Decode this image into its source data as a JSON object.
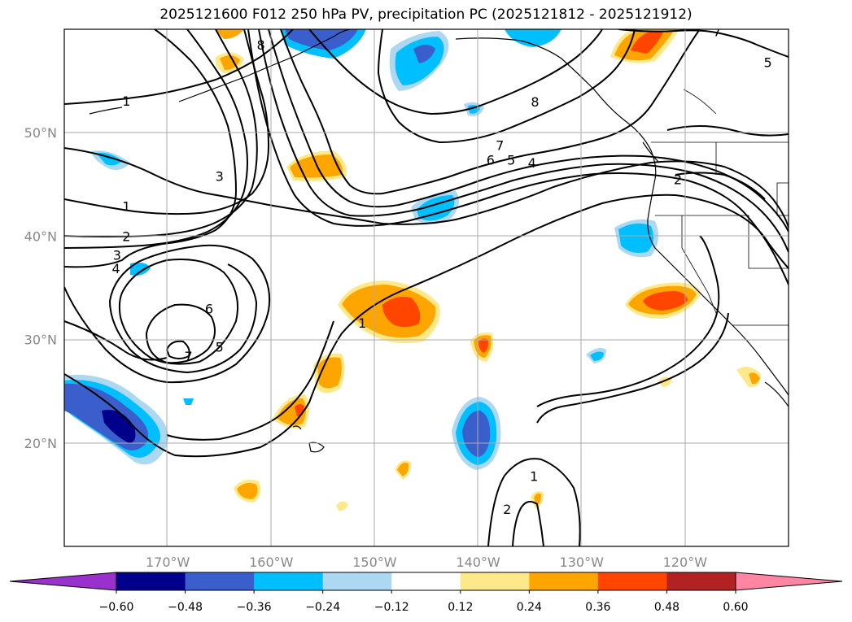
{
  "title": "2025121600 F012 250 hPa PV, precipitation PC (2025121812 - 2025121912)",
  "map": {
    "lon_range": [
      -180,
      -110
    ],
    "lat_range": [
      10,
      60
    ],
    "lat_ticks": [
      {
        "lat": 50,
        "label": "50°N"
      },
      {
        "lat": 40,
        "label": "40°N"
      },
      {
        "lat": 30,
        "label": "30°N"
      },
      {
        "lat": 20,
        "label": "20°N"
      }
    ],
    "lon_ticks": [
      {
        "lon": -170,
        "label": "170°W"
      },
      {
        "lon": -160,
        "label": "160°W"
      },
      {
        "lon": -150,
        "label": "150°W"
      },
      {
        "lon": -140,
        "label": "140°W"
      },
      {
        "lon": -130,
        "label": "130°W"
      },
      {
        "lon": -120,
        "label": "120°W"
      }
    ],
    "contour_labels": [
      {
        "text": "1",
        "lon": -174.0,
        "lat": 53.1
      },
      {
        "text": "8",
        "lon": -161.0,
        "lat": 58.5
      },
      {
        "text": "3",
        "lon": -165.0,
        "lat": 45.8
      },
      {
        "text": "1",
        "lon": -174.0,
        "lat": 42.9
      },
      {
        "text": "2",
        "lon": -174.0,
        "lat": 40.0
      },
      {
        "text": "3",
        "lon": -174.9,
        "lat": 38.2
      },
      {
        "text": "4",
        "lon": -175.0,
        "lat": 36.9
      },
      {
        "text": "6",
        "lon": -166.0,
        "lat": 33.0
      },
      {
        "text": "5",
        "lon": -165.0,
        "lat": 29.3
      },
      {
        "text": "7",
        "lon": -168.0,
        "lat": 28.4
      },
      {
        "text": "8",
        "lon": -134.5,
        "lat": 53.0
      },
      {
        "text": "7",
        "lon": -137.9,
        "lat": 48.8
      },
      {
        "text": "6",
        "lon": -138.8,
        "lat": 47.4
      },
      {
        "text": "5",
        "lon": -136.8,
        "lat": 47.4
      },
      {
        "text": "4",
        "lon": -134.8,
        "lat": 47.1
      },
      {
        "text": "2",
        "lon": -120.7,
        "lat": 45.5
      },
      {
        "text": "7",
        "lon": -116.9,
        "lat": 59.8
      },
      {
        "text": "5",
        "lon": -112.0,
        "lat": 56.8
      },
      {
        "text": "1",
        "lon": -151.2,
        "lat": 31.6
      },
      {
        "text": "1",
        "lon": -134.6,
        "lat": 16.8
      },
      {
        "text": "2",
        "lon": -137.2,
        "lat": 13.6
      }
    ]
  },
  "colorbar": {
    "tick_labels": [
      "−0.60",
      "−0.48",
      "−0.36",
      "−0.24",
      "−0.12",
      "0.12",
      "0.24",
      "0.36",
      "0.48",
      "0.60"
    ],
    "colors": [
      "#9932cc",
      "#00008b",
      "#3a5fcd",
      "#00bfff",
      "#add8f2",
      "#ffffff",
      "#fee98a",
      "#ffa500",
      "#ff4500",
      "#b22222",
      "#ff85a2"
    ]
  }
}
